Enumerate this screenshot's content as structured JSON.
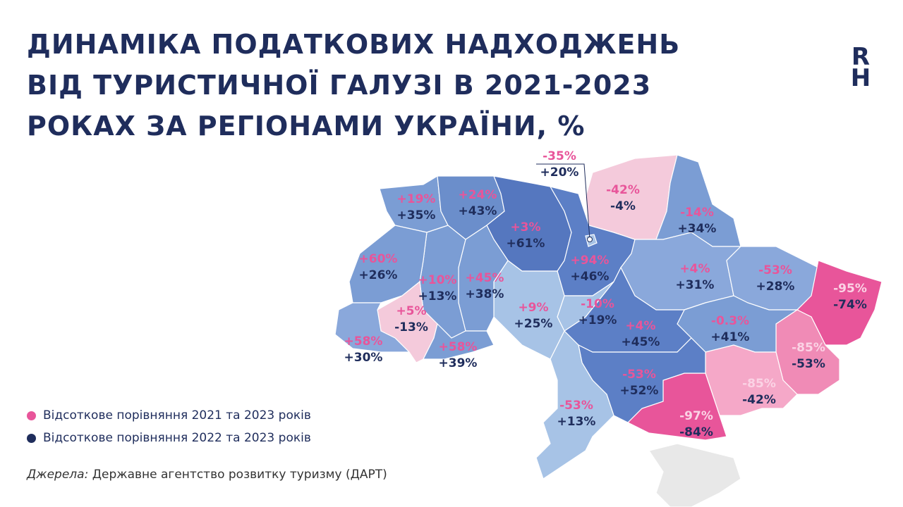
{
  "header": {
    "title_lines": [
      "ДИНАМІКА ПОДАТКОВИХ НАДХОДЖЕНЬ",
      "ВІД ТУРИСТИЧНОЇ ГАЛУЗІ В 2021-2023",
      "РОКАХ ЗА РЕГІОНАМИ УКРАЇНИ, %"
    ],
    "logo_top": "R",
    "logo_bottom": "H"
  },
  "regions": [
    {
      "change_2021": "+19%",
      "change_2022": "+35%"
    },
    {
      "change_2021": "+24%",
      "change_2022": "+43%"
    },
    {
      "change_2021": "+3%",
      "change_2022": "+61%"
    },
    {
      "change_2021": "-35%",
      "change_2022": "+20%"
    },
    {
      "change_2021": "-42%",
      "change_2022": "-4%"
    },
    {
      "change_2021": "-14%",
      "change_2022": "+34%"
    },
    {
      "change_2021": "+94%",
      "change_2022": "+46%"
    },
    {
      "change_2021": "+60%",
      "change_2022": "+26%"
    },
    {
      "change_2021": "+10%",
      "change_2022": "+13%"
    },
    {
      "change_2021": "+45%",
      "change_2022": "+38%"
    },
    {
      "change_2021": "+9%",
      "change_2022": "+25%"
    },
    {
      "change_2021": "-10%",
      "change_2022": "+19%"
    },
    {
      "change_2021": "+4%",
      "change_2022": "+31%"
    },
    {
      "change_2021": "-53%",
      "change_2022": "+28%"
    },
    {
      "change_2021": "-95%",
      "change_2022": "-74%"
    },
    {
      "change_2021": "+5%",
      "change_2022": "-13%"
    },
    {
      "change_2021": "+58%",
      "change_2022": "+30%"
    },
    {
      "change_2021": "+58%",
      "change_2022": "+39%"
    },
    {
      "change_2021": "+4%",
      "change_2022": "+45%"
    },
    {
      "change_2021": "-0.3%",
      "change_2022": "+41%"
    },
    {
      "change_2021": "-85%",
      "change_2022": "-53%"
    },
    {
      "change_2021": "-53%",
      "change_2022": "+52%"
    },
    {
      "change_2021": "-85%",
      "change_2022": "-42%"
    },
    {
      "change_2021": "-53%",
      "change_2022": "+13%"
    },
    {
      "change_2021": "-97%",
      "change_2022": "-84%"
    }
  ],
  "legend": {
    "item_2021": "Відсоткове порівняння 2021 та 2023 років",
    "item_2022": "Відсоткове порівняння 2022 та 2023 років"
  },
  "source": {
    "label": "Джерела:",
    "text": "Державне агентство розвитку туризму (ДАРТ)"
  }
}
